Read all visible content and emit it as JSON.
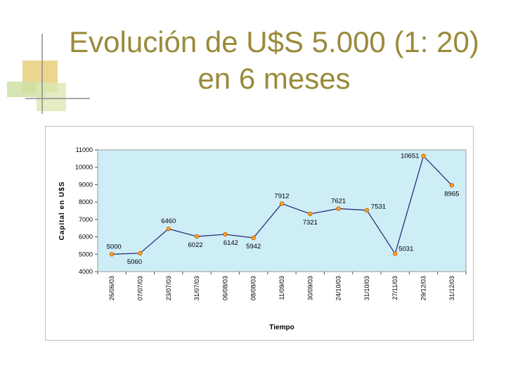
{
  "slide": {
    "title_line1": "Evolución de U$S 5.000 (1: 20)",
    "title_line2": "en 6 meses"
  },
  "colors": {
    "title": "#9a8a3a",
    "plot_bg": "#cdeef7",
    "line": "#1f1f6e",
    "marker_fill": "#f5a623",
    "marker_stroke": "#c85a00",
    "deco_gold": "#e6c86e",
    "deco_green": "#c9d89a"
  },
  "chart_data": {
    "type": "line",
    "ylabel": "Capital en U$S",
    "xlabel": "Tiempo",
    "ylim": [
      4000,
      11000
    ],
    "yticks": [
      4000,
      5000,
      6000,
      7000,
      8000,
      9000,
      10000,
      11000
    ],
    "grid": false,
    "legend": "none",
    "categories": [
      "26/06/03",
      "07/07/03",
      "23/07/03",
      "31/07/03",
      "06/08/03",
      "08/08/03",
      "11/09/03",
      "30/09/03",
      "24/10/03",
      "31/10/03",
      "27/11/03",
      "29/12/03",
      "31/12/03"
    ],
    "values": [
      5000,
      5060,
      6460,
      6022,
      6142,
      5942,
      7912,
      7321,
      7621,
      7531,
      5031,
      10651,
      8965
    ],
    "label_pos": [
      "above",
      "below",
      "above",
      "below",
      "below",
      "below",
      "above",
      "below",
      "above",
      "right",
      "right",
      "left",
      "below"
    ]
  }
}
